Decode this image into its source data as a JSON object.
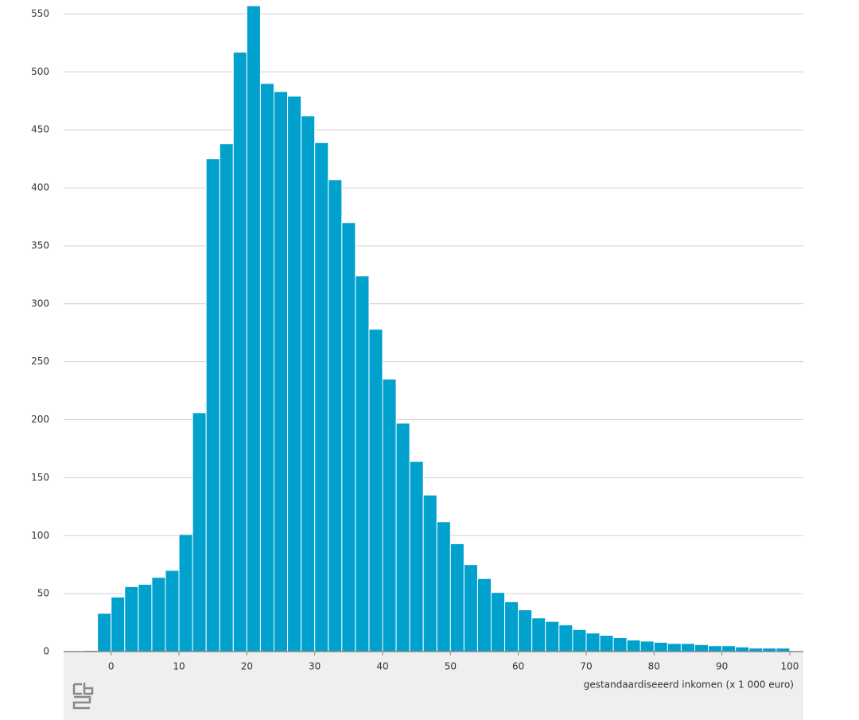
{
  "chart_data": {
    "type": "histogram",
    "xlabel": "gestandaardiseeerd inkomen (x 1 000 euro)",
    "bins": [
      -6,
      -4,
      -2,
      0,
      2,
      4,
      6,
      8,
      10,
      12,
      14,
      16,
      18,
      20,
      22,
      24,
      26,
      28,
      30,
      32,
      34,
      36,
      38,
      40,
      42,
      44,
      46,
      48,
      50,
      52,
      54,
      56,
      58,
      60,
      62,
      64,
      66,
      68,
      70,
      72,
      74,
      76,
      78,
      80,
      82,
      84,
      86,
      88,
      90,
      92,
      94,
      96,
      98,
      100
    ],
    "counts": [
      0,
      1,
      33,
      47,
      56,
      58,
      64,
      70,
      101,
      206,
      425,
      438,
      517,
      557,
      490,
      483,
      479,
      462,
      439,
      407,
      370,
      324,
      278,
      235,
      197,
      164,
      135,
      112,
      93,
      75,
      63,
      51,
      43,
      36,
      29,
      26,
      23,
      19,
      16,
      14,
      12,
      10,
      9,
      8,
      7,
      7,
      6,
      5,
      5,
      4,
      3,
      3,
      3
    ],
    "color": "#00a1cd",
    "xlim": [
      -7,
      102
    ],
    "ylim": [
      0,
      562
    ],
    "xticks": [
      0,
      10,
      20,
      30,
      40,
      50,
      60,
      70,
      80,
      90,
      100
    ],
    "yticks": [
      0,
      50,
      100,
      150,
      200,
      250,
      300,
      350,
      400,
      450,
      500,
      550
    ],
    "grid": true
  }
}
